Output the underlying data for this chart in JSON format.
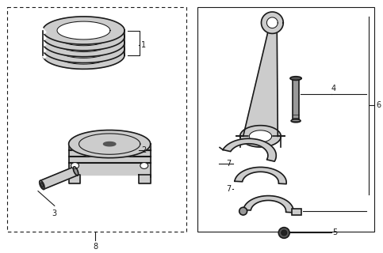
{
  "bg_color": "#ffffff",
  "lc": "#1a1a1a",
  "gray_light": "#cccccc",
  "gray_mid": "#999999",
  "gray_dark": "#555555",
  "fig_width": 4.83,
  "fig_height": 3.2,
  "dpi": 100
}
